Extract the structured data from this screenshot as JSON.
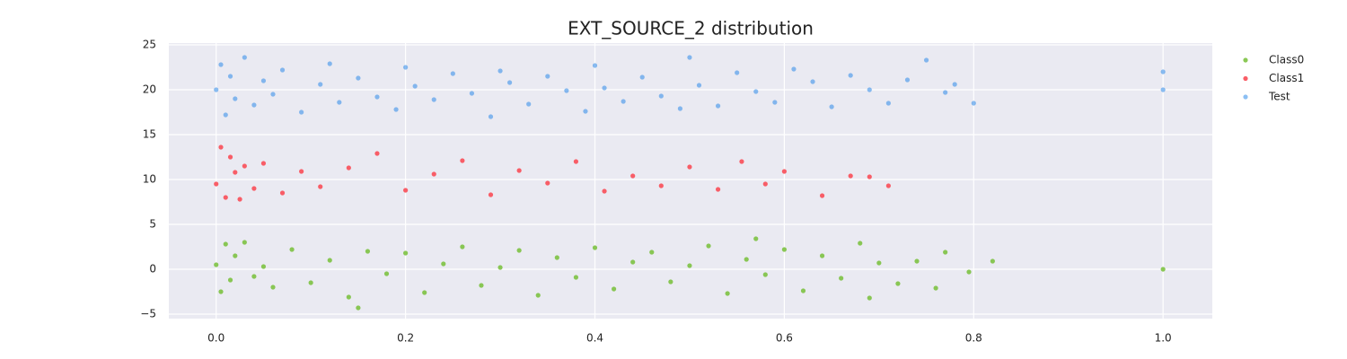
{
  "chart_data": {
    "type": "scatter",
    "title": "EXT_SOURCE_2 distribution",
    "xlim": [
      -0.05,
      1.052
    ],
    "ylim": [
      -5.5,
      25.2
    ],
    "xticks": [
      {
        "value": 0,
        "label": "0.0"
      },
      0.2,
      0.4,
      0.6,
      0.8,
      {
        "value": 1,
        "label": "1.0"
      }
    ],
    "yticks": [
      {
        "value": -5,
        "label": "−5"
      },
      0,
      5,
      10,
      15,
      20,
      25
    ],
    "grid": true,
    "legend": "outside-right",
    "series": [
      {
        "name": "Class0",
        "color": "#7dc242",
        "alpha": 0.9,
        "x": [
          0.0,
          0.005,
          0.01,
          0.015,
          0.02,
          0.03,
          0.04,
          0.05,
          0.06,
          0.08,
          0.1,
          0.12,
          0.14,
          0.15,
          0.16,
          0.18,
          0.2,
          0.22,
          0.24,
          0.26,
          0.28,
          0.3,
          0.32,
          0.34,
          0.36,
          0.38,
          0.4,
          0.42,
          0.44,
          0.46,
          0.48,
          0.5,
          0.52,
          0.54,
          0.56,
          0.57,
          0.58,
          0.6,
          0.62,
          0.64,
          0.66,
          0.68,
          0.69,
          0.7,
          0.72,
          0.74,
          0.76,
          0.77,
          0.795,
          0.82,
          1.0
        ],
        "values": [
          0.5,
          -2.5,
          2.8,
          -1.2,
          1.5,
          3.0,
          -0.8,
          0.3,
          -2.0,
          2.2,
          -1.5,
          1.0,
          -3.1,
          -4.3,
          2.0,
          -0.5,
          1.8,
          -2.6,
          0.6,
          2.5,
          -1.8,
          0.2,
          2.1,
          -2.9,
          1.3,
          -0.9,
          2.4,
          -2.2,
          0.8,
          1.9,
          -1.4,
          0.4,
          2.6,
          -2.7,
          1.1,
          3.4,
          -0.6,
          2.2,
          -2.4,
          1.5,
          -1.0,
          2.9,
          -3.2,
          0.7,
          -1.6,
          0.9,
          -2.1,
          1.9,
          -0.3,
          0.9,
          0.0
        ]
      },
      {
        "name": "Class1",
        "color": "#f9555f",
        "alpha": 0.95,
        "x": [
          0.0,
          0.005,
          0.01,
          0.015,
          0.02,
          0.025,
          0.03,
          0.04,
          0.05,
          0.07,
          0.09,
          0.11,
          0.14,
          0.17,
          0.2,
          0.23,
          0.26,
          0.29,
          0.32,
          0.35,
          0.38,
          0.41,
          0.44,
          0.47,
          0.5,
          0.53,
          0.555,
          0.58,
          0.6,
          0.64,
          0.67,
          0.69,
          0.71
        ],
        "values": [
          9.5,
          13.6,
          8.0,
          12.5,
          10.8,
          7.8,
          11.5,
          9.0,
          11.8,
          8.5,
          10.9,
          9.2,
          11.3,
          12.9,
          8.8,
          10.6,
          12.1,
          8.3,
          11.0,
          9.6,
          12.0,
          8.7,
          10.4,
          9.3,
          11.4,
          8.9,
          12.0,
          9.5,
          10.9,
          8.2,
          10.4,
          10.3,
          9.3
        ]
      },
      {
        "name": "Test",
        "color": "#1a7fe8",
        "alpha": 0.5,
        "x": [
          0.0,
          0.005,
          0.01,
          0.015,
          0.02,
          0.03,
          0.04,
          0.05,
          0.06,
          0.07,
          0.09,
          0.11,
          0.12,
          0.13,
          0.15,
          0.17,
          0.19,
          0.2,
          0.21,
          0.23,
          0.25,
          0.27,
          0.29,
          0.3,
          0.31,
          0.33,
          0.35,
          0.37,
          0.39,
          0.4,
          0.41,
          0.43,
          0.45,
          0.47,
          0.49,
          0.5,
          0.51,
          0.53,
          0.55,
          0.57,
          0.59,
          0.61,
          0.63,
          0.65,
          0.67,
          0.69,
          0.71,
          0.73,
          0.75,
          0.77,
          0.78,
          0.8,
          1.0,
          1.0
        ],
        "values": [
          20.0,
          22.8,
          17.2,
          21.5,
          19.0,
          23.6,
          18.3,
          21.0,
          19.5,
          22.2,
          17.5,
          20.6,
          22.9,
          18.6,
          21.3,
          19.2,
          17.8,
          22.5,
          20.4,
          18.9,
          21.8,
          19.6,
          17.0,
          22.1,
          20.8,
          18.4,
          21.5,
          19.9,
          17.6,
          22.7,
          20.2,
          18.7,
          21.4,
          19.3,
          17.9,
          23.6,
          20.5,
          18.2,
          21.9,
          19.8,
          18.6,
          22.3,
          20.9,
          18.1,
          21.6,
          20.0,
          18.5,
          21.1,
          23.3,
          19.7,
          20.6,
          18.5,
          22.0,
          20.0
        ]
      }
    ]
  }
}
